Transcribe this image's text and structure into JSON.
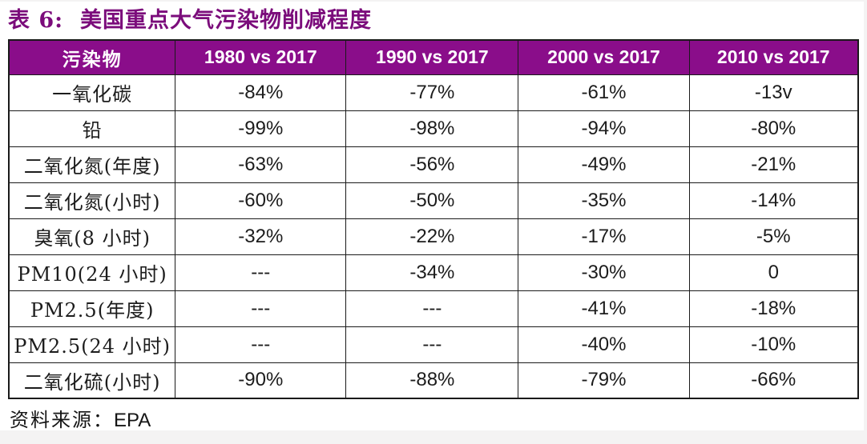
{
  "title": "表 6:  美国重点大气污染物削减程度",
  "colors": {
    "title_purple": "#7b0c7b",
    "header_purple": "#8a0d8a",
    "header_text": "#ffffff",
    "border": "#1a1a1a",
    "page_edge_gray": "#f4f3f3"
  },
  "source": {
    "label": "资料来源：",
    "value": "EPA"
  },
  "table": {
    "columns": [
      "污染物",
      "1980 vs 2017",
      "1990 vs 2017",
      "2000 vs 2017",
      "2010 vs 2017"
    ],
    "rows": [
      {
        "pollutant": "一氧化碳",
        "values": [
          "-84%",
          "-77%",
          "-61%",
          "-13v"
        ]
      },
      {
        "pollutant": "铅",
        "values": [
          "-99%",
          "-98%",
          "-94%",
          "-80%"
        ]
      },
      {
        "pollutant": "二氧化氮(年度)",
        "values": [
          "-63%",
          "-56%",
          "-49%",
          "-21%"
        ]
      },
      {
        "pollutant": "二氧化氮(小时)",
        "values": [
          "-60%",
          "-50%",
          "-35%",
          "-14%"
        ]
      },
      {
        "pollutant": "臭氧(8 小时)",
        "values": [
          "-32%",
          "-22%",
          "-17%",
          "-5%"
        ]
      },
      {
        "pollutant": "PM10(24 小时)",
        "values": [
          "---",
          "-34%",
          "-30%",
          "0"
        ]
      },
      {
        "pollutant": "PM2.5(年度)",
        "values": [
          "---",
          "---",
          "-41%",
          "-18%"
        ]
      },
      {
        "pollutant": "PM2.5(24 小时)",
        "values": [
          "---",
          "---",
          "-40%",
          "-10%"
        ]
      },
      {
        "pollutant": "二氧化硫(小时)",
        "values": [
          "-90%",
          "-88%",
          "-79%",
          "-66%"
        ]
      }
    ]
  },
  "chart_data": {
    "type": "table",
    "title": "表 6:  美国重点大气污染物削减程度",
    "columns": [
      "污染物",
      "1980 vs 2017",
      "1990 vs 2017",
      "2000 vs 2017",
      "2010 vs 2017"
    ],
    "rows": [
      [
        "一氧化碳",
        "-84%",
        "-77%",
        "-61%",
        "-13v"
      ],
      [
        "铅",
        "-99%",
        "-98%",
        "-94%",
        "-80%"
      ],
      [
        "二氧化氮(年度)",
        "-63%",
        "-56%",
        "-49%",
        "-21%"
      ],
      [
        "二氧化氮(小时)",
        "-60%",
        "-50%",
        "-35%",
        "-14%"
      ],
      [
        "臭氧(8 小时)",
        "-32%",
        "-22%",
        "-17%",
        "-5%"
      ],
      [
        "PM10(24 小时)",
        "---",
        "-34%",
        "-30%",
        "0"
      ],
      [
        "PM2.5(年度)",
        "---",
        "---",
        "-41%",
        "-18%"
      ],
      [
        "PM2.5(24 小时)",
        "---",
        "---",
        "-40%",
        "-10%"
      ],
      [
        "二氧化硫(小时)",
        "-90%",
        "-88%",
        "-79%",
        "-66%"
      ]
    ],
    "source": "资料来源：EPA"
  }
}
